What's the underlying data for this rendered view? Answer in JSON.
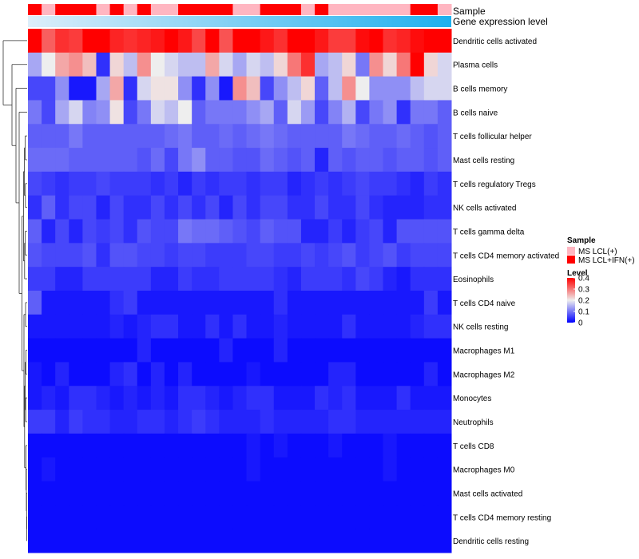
{
  "chart_data": {
    "type": "heatmap",
    "annotation_labels": [
      "Sample",
      "Gene expression level"
    ],
    "row_labels": [
      "Dendritic cells activated",
      "Plasma cells",
      "B cells memory",
      "B cells naive",
      "T cells follicular helper",
      "Mast cells resting",
      "T cells regulatory  Tregs",
      "NK cells activated",
      "T cells gamma delta",
      "T cells CD4 memory activated",
      "Eosinophils",
      "T cells CD4 naive",
      "NK cells resting",
      "Macrophages M1",
      "Macrophages M2",
      "Monocytes",
      "Neutrophils",
      "T cells CD8",
      "Macrophages M0",
      "Mast cells activated",
      "T cells CD4 memory resting",
      "Dendritic cells resting"
    ],
    "sample_groups": [
      "MS LCL(+)",
      "MS LCL+IFN(+)"
    ],
    "sample_assignment": [
      1,
      0,
      1,
      1,
      1,
      0,
      1,
      0,
      1,
      0,
      0,
      1,
      1,
      1,
      1,
      0,
      0,
      1,
      1,
      1,
      0,
      1,
      0,
      0,
      0,
      0,
      0,
      0,
      1,
      1,
      0
    ],
    "expression_level_range": [
      0,
      1
    ],
    "values": [
      [
        0.4,
        0.32,
        0.36,
        0.35,
        0.4,
        0.4,
        0.37,
        0.36,
        0.37,
        0.38,
        0.4,
        0.38,
        0.34,
        0.4,
        0.33,
        0.4,
        0.4,
        0.38,
        0.36,
        0.4,
        0.4,
        0.38,
        0.35,
        0.35,
        0.39,
        0.4,
        0.36,
        0.37,
        0.39,
        0.4,
        0.4
      ],
      [
        0.14,
        0.2,
        0.26,
        0.28,
        0.24,
        0.04,
        0.22,
        0.16,
        0.28,
        0.2,
        0.18,
        0.16,
        0.16,
        0.26,
        0.18,
        0.14,
        0.18,
        0.16,
        0.22,
        0.3,
        0.36,
        0.14,
        0.16,
        0.22,
        0.1,
        0.28,
        0.22,
        0.3,
        0.4,
        0.22,
        0.18
      ],
      [
        0.06,
        0.06,
        0.12,
        0.02,
        0.02,
        0.14,
        0.26,
        0.04,
        0.18,
        0.21,
        0.21,
        0.12,
        0.04,
        0.12,
        0.02,
        0.28,
        0.24,
        0.06,
        0.12,
        0.16,
        0.22,
        0.08,
        0.16,
        0.28,
        0.2,
        0.12,
        0.12,
        0.12,
        0.16,
        0.18,
        0.18
      ],
      [
        0.1,
        0.06,
        0.14,
        0.18,
        0.11,
        0.12,
        0.21,
        0.06,
        0.1,
        0.18,
        0.16,
        0.2,
        0.08,
        0.1,
        0.1,
        0.1,
        0.12,
        0.14,
        0.08,
        0.18,
        0.13,
        0.06,
        0.11,
        0.15,
        0.06,
        0.1,
        0.12,
        0.04,
        0.1,
        0.1,
        0.08
      ],
      [
        0.08,
        0.08,
        0.08,
        0.1,
        0.08,
        0.08,
        0.08,
        0.08,
        0.08,
        0.08,
        0.09,
        0.1,
        0.08,
        0.08,
        0.09,
        0.08,
        0.09,
        0.1,
        0.09,
        0.08,
        0.08,
        0.08,
        0.08,
        0.1,
        0.09,
        0.08,
        0.08,
        0.09,
        0.08,
        0.07,
        0.08
      ],
      [
        0.09,
        0.09,
        0.09,
        0.08,
        0.08,
        0.08,
        0.08,
        0.08,
        0.07,
        0.09,
        0.06,
        0.1,
        0.12,
        0.08,
        0.08,
        0.07,
        0.07,
        0.09,
        0.08,
        0.07,
        0.08,
        0.03,
        0.08,
        0.07,
        0.08,
        0.08,
        0.07,
        0.08,
        0.08,
        0.07,
        0.08
      ],
      [
        0.06,
        0.05,
        0.04,
        0.05,
        0.05,
        0.06,
        0.05,
        0.05,
        0.05,
        0.04,
        0.05,
        0.03,
        0.05,
        0.04,
        0.05,
        0.05,
        0.04,
        0.05,
        0.05,
        0.03,
        0.04,
        0.05,
        0.04,
        0.05,
        0.06,
        0.05,
        0.05,
        0.04,
        0.03,
        0.05,
        0.04
      ],
      [
        0.04,
        0.08,
        0.04,
        0.06,
        0.06,
        0.03,
        0.06,
        0.04,
        0.04,
        0.06,
        0.04,
        0.06,
        0.04,
        0.06,
        0.03,
        0.06,
        0.04,
        0.06,
        0.06,
        0.04,
        0.04,
        0.06,
        0.04,
        0.04,
        0.06,
        0.04,
        0.03,
        0.03,
        0.03,
        0.04,
        0.04
      ],
      [
        0.08,
        0.03,
        0.06,
        0.03,
        0.06,
        0.05,
        0.06,
        0.04,
        0.07,
        0.06,
        0.06,
        0.1,
        0.09,
        0.09,
        0.08,
        0.07,
        0.06,
        0.08,
        0.07,
        0.07,
        0.03,
        0.03,
        0.05,
        0.03,
        0.05,
        0.06,
        0.03,
        0.07,
        0.07,
        0.07,
        0.07
      ],
      [
        0.07,
        0.06,
        0.06,
        0.06,
        0.07,
        0.04,
        0.07,
        0.07,
        0.06,
        0.06,
        0.05,
        0.06,
        0.06,
        0.05,
        0.05,
        0.05,
        0.06,
        0.06,
        0.05,
        0.05,
        0.06,
        0.05,
        0.06,
        0.07,
        0.05,
        0.06,
        0.07,
        0.05,
        0.06,
        0.06,
        0.06
      ],
      [
        0.05,
        0.05,
        0.03,
        0.03,
        0.05,
        0.05,
        0.05,
        0.05,
        0.05,
        0.03,
        0.03,
        0.05,
        0.04,
        0.04,
        0.05,
        0.05,
        0.05,
        0.05,
        0.04,
        0.03,
        0.05,
        0.05,
        0.05,
        0.04,
        0.06,
        0.05,
        0.03,
        0.02,
        0.04,
        0.04,
        0.04
      ],
      [
        0.08,
        0.02,
        0.02,
        0.02,
        0.02,
        0.02,
        0.04,
        0.05,
        0.02,
        0.02,
        0.02,
        0.02,
        0.02,
        0.02,
        0.02,
        0.02,
        0.02,
        0.02,
        0.04,
        0.02,
        0.02,
        0.02,
        0.02,
        0.02,
        0.02,
        0.02,
        0.02,
        0.02,
        0.02,
        0.05,
        0.02
      ],
      [
        0.02,
        0.02,
        0.02,
        0.02,
        0.02,
        0.02,
        0.03,
        0.02,
        0.03,
        0.04,
        0.04,
        0.02,
        0.02,
        0.04,
        0.02,
        0.04,
        0.02,
        0.02,
        0.03,
        0.02,
        0.02,
        0.02,
        0.02,
        0.04,
        0.02,
        0.02,
        0.02,
        0.02,
        0.03,
        0.04,
        0.04
      ],
      [
        0.01,
        0.01,
        0.01,
        0.01,
        0.01,
        0.01,
        0.01,
        0.01,
        0.03,
        0.01,
        0.01,
        0.01,
        0.01,
        0.01,
        0.03,
        0.01,
        0.01,
        0.01,
        0.03,
        0.01,
        0.01,
        0.01,
        0.01,
        0.01,
        0.01,
        0.01,
        0.01,
        0.01,
        0.01,
        0.01,
        0.01
      ],
      [
        0.02,
        0.01,
        0.03,
        0.01,
        0.01,
        0.01,
        0.03,
        0.04,
        0.01,
        0.03,
        0.01,
        0.03,
        0.01,
        0.01,
        0.01,
        0.01,
        0.02,
        0.01,
        0.01,
        0.01,
        0.01,
        0.01,
        0.03,
        0.03,
        0.01,
        0.01,
        0.01,
        0.01,
        0.01,
        0.03,
        0.01
      ],
      [
        0.02,
        0.03,
        0.02,
        0.04,
        0.04,
        0.03,
        0.02,
        0.03,
        0.02,
        0.03,
        0.02,
        0.04,
        0.04,
        0.03,
        0.02,
        0.03,
        0.04,
        0.04,
        0.02,
        0.02,
        0.02,
        0.04,
        0.03,
        0.04,
        0.02,
        0.02,
        0.02,
        0.04,
        0.02,
        0.02,
        0.02
      ],
      [
        0.05,
        0.05,
        0.03,
        0.05,
        0.04,
        0.04,
        0.03,
        0.03,
        0.04,
        0.04,
        0.03,
        0.04,
        0.05,
        0.04,
        0.03,
        0.03,
        0.03,
        0.04,
        0.03,
        0.03,
        0.03,
        0.03,
        0.04,
        0.04,
        0.03,
        0.03,
        0.03,
        0.03,
        0.03,
        0.03,
        0.03
      ],
      [
        0.01,
        0.01,
        0.01,
        0.01,
        0.01,
        0.01,
        0.01,
        0.01,
        0.01,
        0.01,
        0.01,
        0.01,
        0.01,
        0.01,
        0.01,
        0.01,
        0.02,
        0.01,
        0.02,
        0.01,
        0.01,
        0.01,
        0.02,
        0.01,
        0.01,
        0.01,
        0.02,
        0.01,
        0.01,
        0.01,
        0.01
      ],
      [
        0.01,
        0.02,
        0.01,
        0.01,
        0.01,
        0.01,
        0.01,
        0.01,
        0.01,
        0.01,
        0.01,
        0.01,
        0.01,
        0.01,
        0.01,
        0.01,
        0.02,
        0.01,
        0.01,
        0.01,
        0.01,
        0.01,
        0.01,
        0.01,
        0.01,
        0.01,
        0.02,
        0.01,
        0.01,
        0.01,
        0.01
      ],
      [
        0.01,
        0.01,
        0.01,
        0.01,
        0.01,
        0.01,
        0.01,
        0.01,
        0.01,
        0.01,
        0.01,
        0.01,
        0.01,
        0.01,
        0.01,
        0.01,
        0.01,
        0.01,
        0.01,
        0.01,
        0.01,
        0.01,
        0.01,
        0.01,
        0.01,
        0.01,
        0.01,
        0.01,
        0.01,
        0.01,
        0.01
      ],
      [
        0.01,
        0.01,
        0.01,
        0.01,
        0.01,
        0.01,
        0.01,
        0.01,
        0.01,
        0.01,
        0.01,
        0.01,
        0.01,
        0.01,
        0.01,
        0.01,
        0.01,
        0.01,
        0.01,
        0.01,
        0.01,
        0.01,
        0.01,
        0.01,
        0.01,
        0.01,
        0.01,
        0.01,
        0.01,
        0.01,
        0.01
      ],
      [
        0.01,
        0.01,
        0.01,
        0.01,
        0.01,
        0.01,
        0.01,
        0.01,
        0.01,
        0.01,
        0.01,
        0.01,
        0.01,
        0.01,
        0.01,
        0.01,
        0.01,
        0.01,
        0.01,
        0.01,
        0.01,
        0.01,
        0.01,
        0.01,
        0.01,
        0.01,
        0.01,
        0.01,
        0.01,
        0.01,
        0.01
      ]
    ],
    "legend_sample": {
      "title": "Sample",
      "entries": [
        {
          "label": "MS LCL(+)",
          "color": "#FFB6C1"
        },
        {
          "label": "MS LCL+IFN(+)",
          "color": "#FF0000"
        }
      ]
    },
    "legend_level": {
      "title": "Level",
      "ticks": [
        0.4,
        0.3,
        0.2,
        0.1,
        0
      ],
      "range": [
        0,
        0.4
      ]
    },
    "colors": {
      "low": "#0000FF",
      "mid": "#EEEEEE",
      "high": "#FF0000",
      "group_light": "#FFB6C1",
      "group_dark": "#FF0000",
      "expr_low": "#DDEEFA",
      "expr_high": "#1EB0EE"
    }
  }
}
